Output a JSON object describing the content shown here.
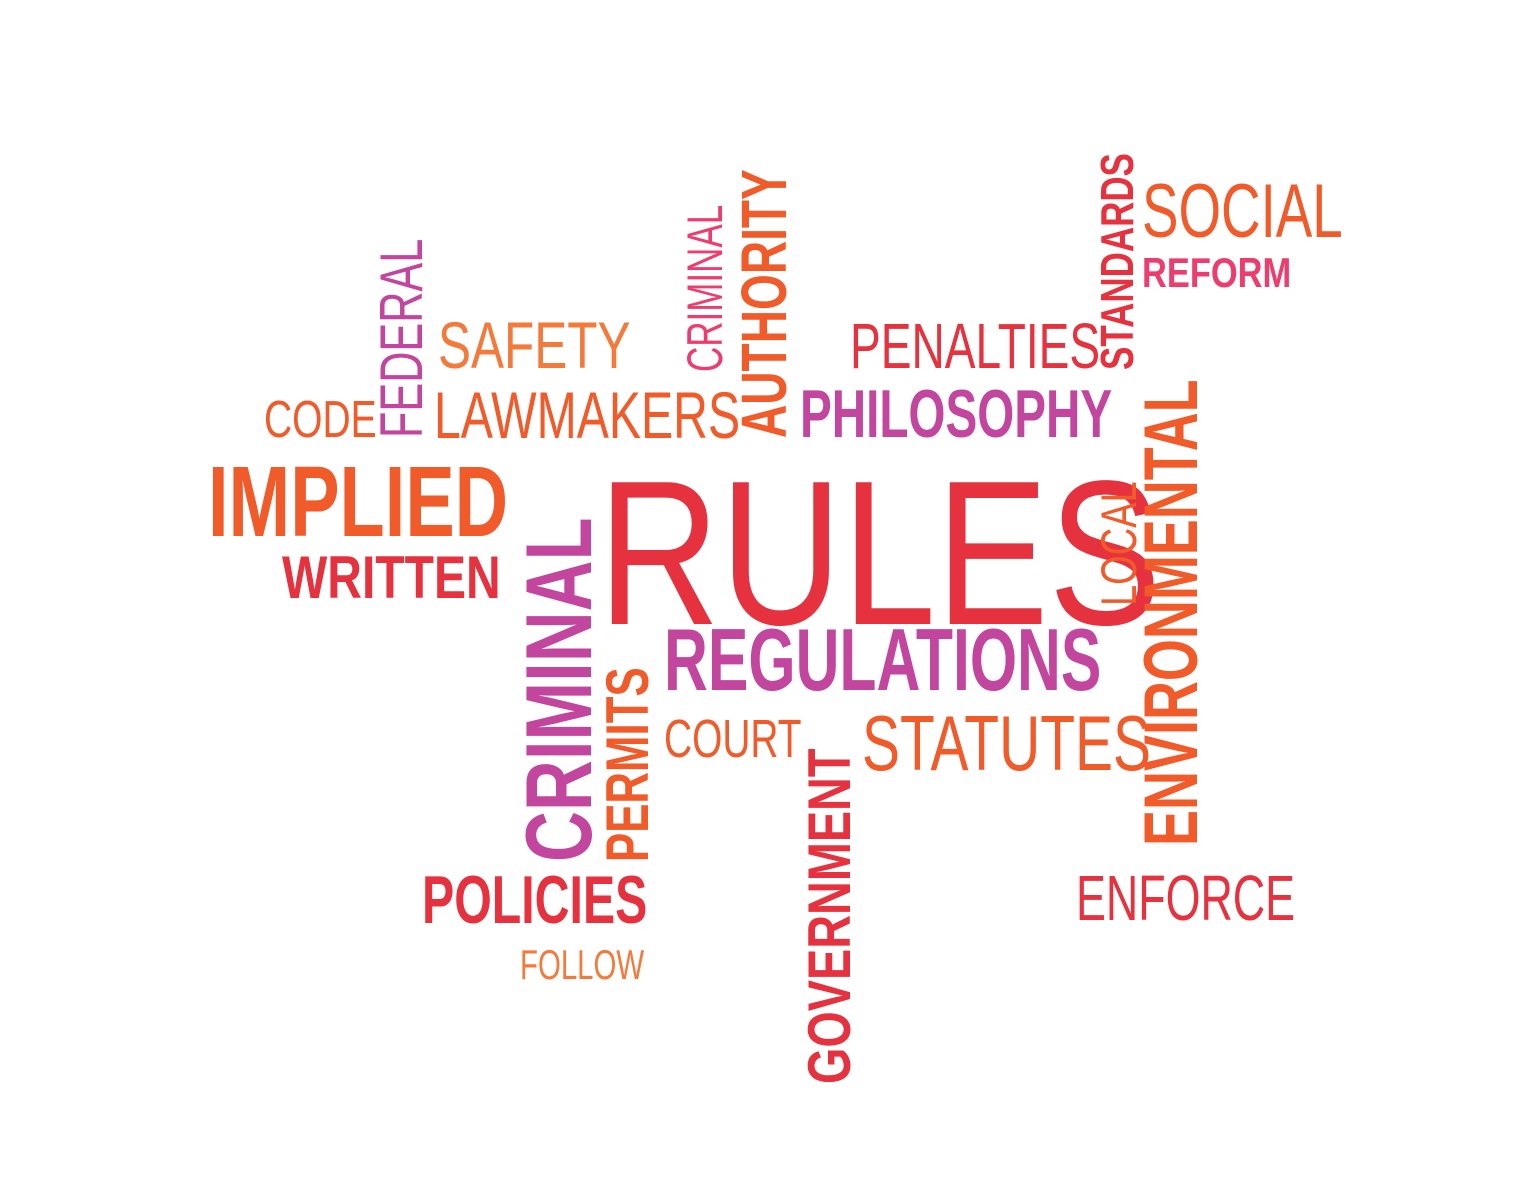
{
  "palette": {
    "red": "#e5323e",
    "orange": "#f15a29",
    "magenta": "#c2469e",
    "pink": "#ec3d6e",
    "light_orange": "#f47a3c"
  },
  "words": {
    "rules": "RULES",
    "implied": "IMPLIED",
    "written": "WRITTEN",
    "code": "CODE",
    "federal": "FEDERAL",
    "safety": "SAFETY",
    "lawmakers": "LAWMAKERS",
    "criminal_small": "CRIMINAL",
    "authority": "AUTHORITY",
    "penalties": "PENALTIES",
    "philosophy": "PHILOSOPHY",
    "standards": "STANDARDS",
    "social": "SOCIAL",
    "reform": "REFORM",
    "local": "LOCAL",
    "environmental": "ENVIRONMENTAL",
    "criminal_large": "CRIMINAL",
    "permits": "PERMITS",
    "regulations": "REGULATIONS",
    "court": "COURT",
    "statutes": "STATUTES",
    "government": "GOVERNMENT",
    "enforce": "ENFORCE",
    "policies": "POLICIES",
    "follow": "FOLLOW"
  }
}
